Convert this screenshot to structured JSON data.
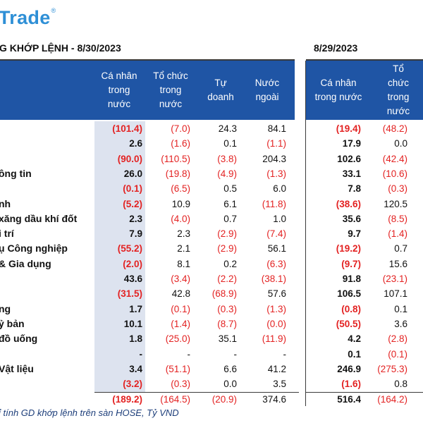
{
  "logo": {
    "text": "Trade",
    "mark": "®"
  },
  "title_left": "G KHỚP LỆNH - 8/30/2023",
  "title_right": "8/29/2023",
  "headers_left": [
    "Cá nhân\ntrong\nnước",
    "Tổ chức\ntrong\nnước",
    "Tự\ndoanh",
    "Nước\nngoài"
  ],
  "headers_right": [
    "Cá nhân\ntrong nước",
    "Tổ\nchức\ntrong\nnước"
  ],
  "rows": [
    {
      "label": "",
      "v": [
        "(101.4)",
        "(7.0)",
        "24.3",
        "84.1",
        "(19.4)",
        "(48.2)"
      ]
    },
    {
      "label": "",
      "v": [
        "2.6",
        "(1.6)",
        "0.1",
        "(1.1)",
        "17.9",
        "0.0"
      ]
    },
    {
      "label": "",
      "v": [
        "(90.0)",
        "(110.5)",
        "(3.8)",
        "204.3",
        "102.6",
        "(42.4)"
      ]
    },
    {
      "label": "ông tin",
      "v": [
        "26.0",
        "(19.8)",
        "(4.9)",
        "(1.3)",
        "33.1",
        "(10.6)"
      ]
    },
    {
      "label": "",
      "v": [
        "(0.1)",
        "(6.5)",
        "0.5",
        "6.0",
        "7.8",
        "(0.3)"
      ]
    },
    {
      "label": "nh",
      "v": [
        "(5.2)",
        "10.9",
        "6.1",
        "(11.8)",
        "(38.6)",
        "120.5"
      ]
    },
    {
      "label": "xăng dầu khí đốt",
      "v": [
        "2.3",
        "(4.0)",
        "0.7",
        "1.0",
        "35.6",
        "(8.5)"
      ]
    },
    {
      "label": "i trí",
      "v": [
        "7.9",
        "2.3",
        "(2.9)",
        "(7.4)",
        "9.7",
        "(1.4)"
      ]
    },
    {
      "label": "ụ Công nghiệp",
      "v": [
        "(55.2)",
        "2.1",
        "(2.9)",
        "56.1",
        "(19.2)",
        "0.7"
      ]
    },
    {
      "label": "& Gia dụng",
      "v": [
        "(2.0)",
        "8.1",
        "0.2",
        "(6.3)",
        "(9.7)",
        "15.6"
      ]
    },
    {
      "label": "",
      "v": [
        "43.6",
        "(3.4)",
        "(2.2)",
        "(38.1)",
        "91.8",
        "(23.1)"
      ]
    },
    {
      "label": "",
      "v": [
        "(31.5)",
        "42.8",
        "(68.9)",
        "57.6",
        "106.5",
        "107.1"
      ]
    },
    {
      "label": "ng",
      "v": [
        "1.7",
        "(0.1)",
        "(0.3)",
        "(1.3)",
        "(0.8)",
        "0.1"
      ]
    },
    {
      "label": "ỷ bản",
      "v": [
        "10.1",
        "(1.4)",
        "(8.7)",
        "(0.0)",
        "(50.5)",
        "3.6"
      ]
    },
    {
      "label": "đồ uống",
      "v": [
        "1.8",
        "(25.0)",
        "35.1",
        "(11.9)",
        "4.2",
        "(2.8)"
      ]
    },
    {
      "label": "",
      "v": [
        "-",
        "-",
        "-",
        "-",
        "0.1",
        "(0.1)"
      ]
    },
    {
      "label": "Vật liệu",
      "v": [
        "3.4",
        "(51.1)",
        "6.6",
        "41.2",
        "246.9",
        "(275.3)"
      ]
    },
    {
      "label": "",
      "v": [
        "(3.2)",
        "(0.3)",
        "0.0",
        "3.5",
        "(1.6)",
        "0.8"
      ]
    }
  ],
  "total": {
    "v": [
      "(189.2)",
      "(164.5)",
      "(20.9)",
      "374.6",
      "516.4",
      "(164.2)"
    ]
  },
  "footnote": "ỉ tính GD khớp lệnh trên sàn HOSE, Tỷ VND",
  "colors": {
    "header_bg": "#1f55a5",
    "shade": "#dde3ef",
    "negative": "#e32222",
    "logo": "#2e8fd6"
  }
}
